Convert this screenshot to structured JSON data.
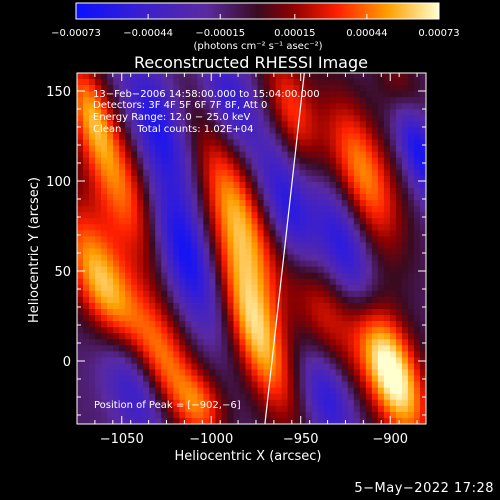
{
  "chart_data": {
    "type": "heatmap",
    "title": "Reconstructed RHESSI Image",
    "xlabel": "Heliocentric X (arcsec)",
    "ylabel": "Heliocentric Y (arcsec)",
    "xlim": [
      -1075,
      -880
    ],
    "ylim": [
      -35,
      160
    ],
    "xticks": [
      -1050,
      -1000,
      -950,
      -900
    ],
    "xtick_labels": [
      "−1050",
      "−1000",
      "−950",
      "−900"
    ],
    "yticks": [
      0,
      50,
      100,
      150
    ],
    "ytick_labels": [
      "0",
      "50",
      "100",
      "150"
    ],
    "colorbar": {
      "range": [
        -0.00073,
        0.00073
      ],
      "ticks": [
        -0.00073,
        -0.00044,
        -0.00015,
        0.00015,
        0.00044,
        0.00073
      ],
      "tick_labels": [
        "−0.00073",
        "−0.00044",
        "−0.00015",
        "0.00015",
        "0.00044",
        "0.00073"
      ],
      "unit_label": "(photons cm⁻² s⁻¹ asec⁻²)"
    },
    "annotations": [
      "13−Feb−2006 14:58:00.000 to 15:04:00.000",
      "Detectors: 3F 4F 5F 6F 7F 8F, Att 0",
      "Energy Range: 12.0 − 25.0 keV",
      "Clean     Total counts: 1.02E+04"
    ],
    "peak_label": "Position of Peak = [−902,−6]",
    "peak": [
      -902,
      -6
    ],
    "limb_line": [
      [
        -970,
        -35
      ],
      [
        -948,
        160
      ]
    ],
    "blobs": [
      {
        "x": -900,
        "y": -5,
        "amp": 0.00095,
        "sx": 11,
        "sy": 30,
        "rot": -0.35
      },
      {
        "x": -1060,
        "y": 40,
        "amp": 0.00075,
        "sx": 11,
        "sy": 35,
        "rot": -0.4
      },
      {
        "x": -1050,
        "y": 95,
        "amp": 0.00055,
        "sx": 12,
        "sy": 32,
        "rot": -0.35
      },
      {
        "x": -985,
        "y": 80,
        "amp": 0.00065,
        "sx": 11,
        "sy": 38,
        "rot": -0.35
      },
      {
        "x": -975,
        "y": 15,
        "amp": 0.0007,
        "sx": 10,
        "sy": 35,
        "rot": -0.35
      },
      {
        "x": -915,
        "y": 105,
        "amp": 0.0006,
        "sx": 11,
        "sy": 32,
        "rot": -0.35
      },
      {
        "x": -940,
        "y": 35,
        "amp": 0.00045,
        "sx": 10,
        "sy": 30,
        "rot": -0.3
      },
      {
        "x": -1025,
        "y": 0,
        "amp": 0.0005,
        "sx": 10,
        "sy": 28,
        "rot": -0.35
      },
      {
        "x": -1068,
        "y": 140,
        "amp": 0.0005,
        "sx": 8,
        "sy": 22,
        "rot": -0.3
      },
      {
        "x": -955,
        "y": 140,
        "amp": 0.00045,
        "sx": 9,
        "sy": 25,
        "rot": -0.3
      },
      {
        "x": -895,
        "y": 150,
        "amp": 0.0004,
        "sx": 8,
        "sy": 18,
        "rot": -0.3
      },
      {
        "x": -1005,
        "y": -25,
        "amp": 0.0004,
        "sx": 9,
        "sy": 15,
        "rot": -0.3
      },
      {
        "x": -1015,
        "y": 60,
        "amp": -0.0006,
        "sx": 10,
        "sy": 30,
        "rot": -0.35
      },
      {
        "x": -1030,
        "y": 130,
        "amp": -0.0005,
        "sx": 10,
        "sy": 28,
        "rot": -0.35
      },
      {
        "x": -955,
        "y": 80,
        "amp": -0.00055,
        "sx": 9,
        "sy": 30,
        "rot": -0.35
      },
      {
        "x": -925,
        "y": 60,
        "amp": -0.0005,
        "sx": 9,
        "sy": 28,
        "rot": -0.35
      },
      {
        "x": -885,
        "y": 120,
        "amp": -0.0006,
        "sx": 7,
        "sy": 25,
        "rot": -0.35
      },
      {
        "x": -1045,
        "y": -10,
        "amp": -0.0005,
        "sx": 10,
        "sy": 25,
        "rot": -0.35
      },
      {
        "x": -935,
        "y": -20,
        "amp": -0.00045,
        "sx": 9,
        "sy": 20,
        "rot": -0.3
      },
      {
        "x": -990,
        "y": 145,
        "amp": -0.0004,
        "sx": 9,
        "sy": 20,
        "rot": -0.3
      }
    ]
  },
  "footer": {
    "datestamp": "5−May−2022 17:28"
  }
}
